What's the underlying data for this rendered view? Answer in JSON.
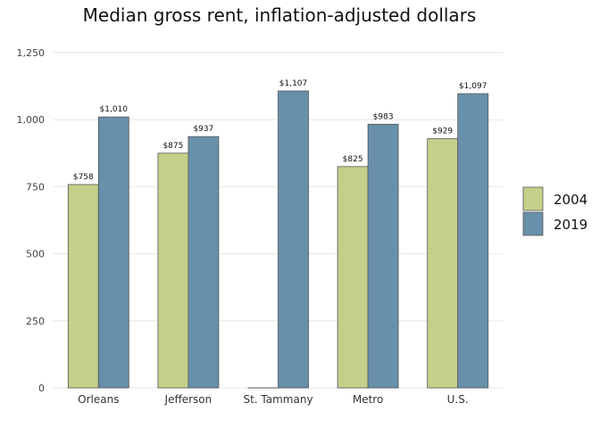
{
  "chart_data": {
    "type": "bar",
    "title": "Median gross rent, inflation-adjusted dollars",
    "xlabel": "",
    "ylabel": "",
    "categories": [
      "Orleans",
      "Jefferson",
      "St. Tammany",
      "Metro",
      "U.S."
    ],
    "series": [
      {
        "name": "2004",
        "color": "#c5cf8a",
        "values": [
          758,
          875,
          null,
          825,
          929
        ],
        "labels": [
          "$758",
          "$875",
          "",
          "$825",
          "$929"
        ]
      },
      {
        "name": "2019",
        "color": "#6890aa",
        "values": [
          1010,
          937,
          1107,
          983,
          1097
        ],
        "labels": [
          "$1,010",
          "$937",
          "$1,107",
          "$983",
          "$1,097"
        ]
      }
    ],
    "ylim": [
      0,
      1250
    ],
    "yticks": [
      0,
      250,
      500,
      750,
      1000,
      1250
    ],
    "ytick_labels": [
      "0",
      "250",
      "500",
      "750",
      "1,000",
      "1,250"
    ],
    "grid": true,
    "legend": "right"
  }
}
